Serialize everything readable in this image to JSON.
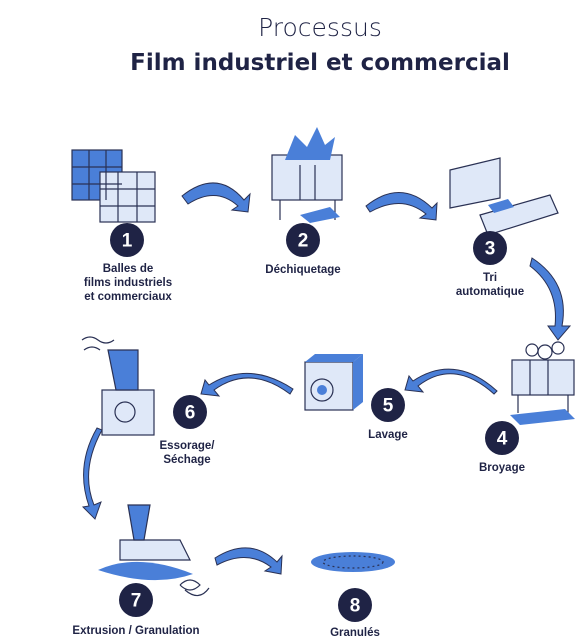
{
  "header": {
    "title": "Processus",
    "subtitle": "Film industriel et commercial"
  },
  "steps": [
    {
      "number": "1",
      "label": [
        "Balles de",
        "films industriels",
        "et commerciaux"
      ]
    },
    {
      "number": "2",
      "label": [
        "Déchiquetage"
      ]
    },
    {
      "number": "3",
      "label": [
        "Tri",
        "automatique"
      ]
    },
    {
      "number": "4",
      "label": [
        "Broyage"
      ]
    },
    {
      "number": "5",
      "label": [
        "Lavage"
      ]
    },
    {
      "number": "6",
      "label": [
        "Essorage/",
        "Séchage"
      ]
    },
    {
      "number": "7",
      "label": [
        "Extrusion / Granulation"
      ]
    },
    {
      "number": "8",
      "label": [
        "Granulés"
      ]
    }
  ]
}
